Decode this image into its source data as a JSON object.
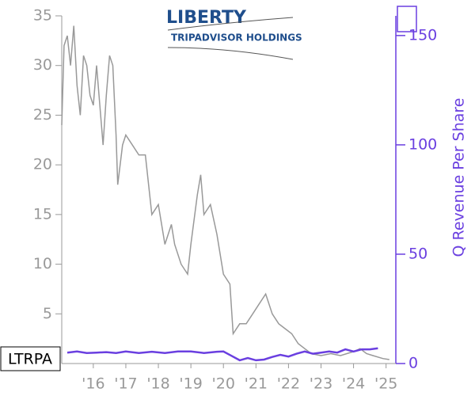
{
  "logo": {
    "line1": "LIBERTY",
    "line2": "TRIPADVISOR HOLDINGS"
  },
  "ticker": "LTRPA",
  "chart_data": {
    "type": "line",
    "y2label": "Q Revenue Per Share",
    "xlim": [
      2015.03,
      2025.3
    ],
    "xticks": [
      {
        "value": 2016,
        "label": "'16"
      },
      {
        "value": 2017,
        "label": "'17"
      },
      {
        "value": 2018,
        "label": "'18"
      },
      {
        "value": 2019,
        "label": "'19"
      },
      {
        "value": 2020,
        "label": "'20"
      },
      {
        "value": 2021,
        "label": "'21"
      },
      {
        "value": 2022,
        "label": "'22"
      },
      {
        "value": 2023,
        "label": "'23"
      },
      {
        "value": 2024,
        "label": "'24"
      },
      {
        "value": 2025,
        "label": "'25"
      }
    ],
    "ylim": [
      0,
      35
    ],
    "yticks": [
      5,
      10,
      15,
      20,
      25,
      30,
      35
    ],
    "y2lim": [
      0,
      159
    ],
    "y2ticks": [
      0,
      50,
      100,
      150
    ],
    "series": [
      {
        "color": "#999999",
        "x": [
          2015.03,
          2015.1,
          2015.2,
          2015.3,
          2015.4,
          2015.5,
          2015.6,
          2015.7,
          2015.8,
          2015.9,
          2016.0,
          2016.1,
          2016.2,
          2016.3,
          2016.4,
          2016.5,
          2016.6,
          2016.7,
          2016.75,
          2016.9,
          2017.0,
          2017.2,
          2017.4,
          2017.6,
          2017.7,
          2017.8,
          2018.0,
          2018.2,
          2018.4,
          2018.5,
          2018.7,
          2018.9,
          2019.0,
          2019.2,
          2019.3,
          2019.4,
          2019.6,
          2019.8,
          2020.0,
          2020.2,
          2020.3,
          2020.5,
          2020.7,
          2020.9,
          2021.1,
          2021.3,
          2021.5,
          2021.7,
          2021.9,
          2022.1,
          2022.3,
          2022.5,
          2022.7,
          2023.0,
          2023.3,
          2023.6,
          2024.0,
          2024.2,
          2024.4,
          2024.6,
          2024.9,
          2025.1
        ],
        "values": [
          24,
          32,
          33,
          30,
          34,
          28,
          25,
          31,
          30,
          27,
          26,
          30,
          26,
          22,
          27,
          31,
          30,
          23,
          18,
          22,
          23,
          22,
          21,
          21,
          18,
          15,
          16,
          12,
          14,
          12,
          10,
          9,
          12,
          17,
          19,
          15,
          16,
          13,
          9,
          8,
          3,
          4,
          4,
          5,
          6,
          7,
          5,
          4,
          3.5,
          3,
          2,
          1.5,
          1,
          0.8,
          1,
          0.8,
          1.2,
          1.5,
          1,
          0.8,
          0.5,
          0.4
        ]
      },
      {
        "color": "#6a3fe0",
        "axis": "y2",
        "x": [
          2015.2,
          2015.5,
          2015.8,
          2016.1,
          2016.4,
          2016.7,
          2017.0,
          2017.4,
          2017.8,
          2018.2,
          2018.6,
          2019.0,
          2019.4,
          2019.8,
          2020.0,
          2020.25,
          2020.5,
          2020.75,
          2021.0,
          2021.25,
          2021.5,
          2021.75,
          2022.0,
          2022.25,
          2022.5,
          2022.75,
          2023.0,
          2023.25,
          2023.5,
          2023.75,
          2024.0,
          2024.25,
          2024.5,
          2024.75
        ],
        "values": [
          5,
          5.5,
          4.8,
          5,
          5.2,
          4.8,
          5.5,
          4.8,
          5.4,
          4.8,
          5.5,
          5.5,
          4.8,
          5.4,
          5.5,
          3.5,
          1.5,
          2.5,
          1.5,
          1.8,
          3,
          4,
          3.2,
          4.5,
          5.5,
          4.5,
          5,
          5.5,
          5,
          6.5,
          5.5,
          6.5,
          6.5,
          7
        ]
      }
    ]
  }
}
